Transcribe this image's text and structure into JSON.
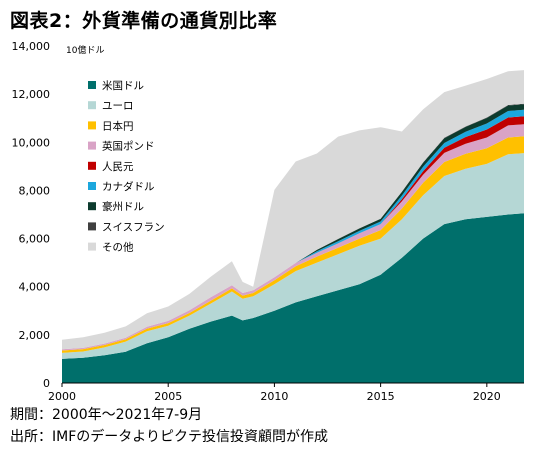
{
  "title": "図表2：外貨準備の通貨別比率",
  "notes": {
    "period": "期間：2000年～2021年7-9月",
    "source": "出所：IMFのデータよりピクテ投信投資顧問が作成"
  },
  "chart_data": {
    "type": "area",
    "stacked": true,
    "unit": "10億ドル",
    "xlim": [
      2000,
      2021.75
    ],
    "ylim": [
      0,
      14000
    ],
    "yticks": [
      0,
      2000,
      4000,
      6000,
      8000,
      10000,
      12000,
      14000
    ],
    "ytick_labels": [
      "0",
      "2,000",
      "4,000",
      "6,000",
      "8,000",
      "10,000",
      "12,000",
      "14,000"
    ],
    "xticks": [
      2000,
      2005,
      2010,
      2015,
      2020
    ],
    "xtick_labels": [
      "2000",
      "2005",
      "2010",
      "2015",
      "2020"
    ],
    "grid": false,
    "legend_position": "top-left",
    "x": [
      2000,
      2001,
      2002,
      2003,
      2004,
      2005,
      2006,
      2007,
      2008,
      2008.5,
      2009,
      2010,
      2011,
      2012,
      2013,
      2014,
      2015,
      2016,
      2017,
      2018,
      2019,
      2020,
      2021,
      2021.75
    ],
    "series": [
      {
        "name": "米国ドル",
        "color": "#006F6B",
        "values": [
          1000,
          1050,
          1150,
          1300,
          1650,
          1900,
          2250,
          2550,
          2800,
          2600,
          2700,
          3000,
          3350,
          3600,
          3850,
          4100,
          4500,
          5200,
          6000,
          6600,
          6800,
          6900,
          7000,
          7050
        ]
      },
      {
        "name": "ユーロ",
        "color": "#B5D7D5",
        "values": [
          250,
          260,
          330,
          420,
          500,
          480,
          550,
          750,
          1000,
          900,
          900,
          1100,
          1300,
          1400,
          1500,
          1600,
          1500,
          1600,
          1800,
          2000,
          2100,
          2200,
          2500,
          2500
        ]
      },
      {
        "name": "日本円",
        "color": "#FFC000",
        "values": [
          100,
          100,
          100,
          100,
          110,
          110,
          110,
          120,
          130,
          130,
          140,
          170,
          200,
          250,
          270,
          300,
          350,
          450,
          520,
          580,
          620,
          650,
          700,
          700
        ]
      },
      {
        "name": "英国ポンド",
        "color": "#D9A3C6",
        "values": [
          50,
          50,
          55,
          60,
          80,
          90,
          110,
          140,
          130,
          110,
          110,
          120,
          140,
          160,
          180,
          220,
          250,
          300,
          330,
          380,
          420,
          450,
          500,
          500
        ]
      },
      {
        "name": "人民元",
        "color": "#C00000",
        "values": [
          0,
          0,
          0,
          0,
          0,
          0,
          0,
          0,
          0,
          0,
          0,
          0,
          0,
          0,
          0,
          0,
          0,
          90,
          150,
          210,
          280,
          330,
          330,
          330
        ]
      },
      {
        "name": "カナダドル",
        "color": "#1CA7DD",
        "values": [
          0,
          0,
          0,
          0,
          0,
          0,
          0,
          0,
          0,
          0,
          0,
          0,
          0,
          60,
          90,
          100,
          110,
          150,
          180,
          200,
          220,
          250,
          270,
          270
        ]
      },
      {
        "name": "豪州ドル",
        "color": "#0D3B2E",
        "values": [
          0,
          0,
          0,
          0,
          0,
          0,
          0,
          0,
          0,
          0,
          0,
          0,
          0,
          60,
          90,
          100,
          110,
          150,
          170,
          200,
          200,
          230,
          230,
          230
        ]
      },
      {
        "name": "スイスフラン",
        "color": "#404040",
        "values": [
          0,
          0,
          0,
          0,
          0,
          0,
          0,
          0,
          0,
          0,
          0,
          0,
          0,
          5,
          5,
          5,
          5,
          10,
          15,
          15,
          15,
          20,
          20,
          20
        ]
      },
      {
        "name": "その他",
        "color": "#D9D9D9",
        "values": [
          400,
          440,
          450,
          470,
          560,
          600,
          680,
          850,
          1000,
          460,
          150,
          3630,
          4210,
          4000,
          4250,
          4070,
          3800,
          2500,
          2200,
          1900,
          1700,
          1600,
          1400,
          1400
        ]
      }
    ]
  }
}
